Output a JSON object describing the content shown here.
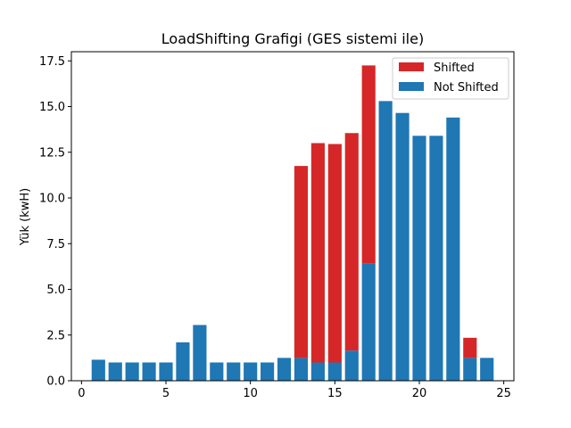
{
  "chart_data": {
    "type": "bar",
    "stacked": true,
    "title": "LoadShifting Grafigi (GES sistemi ile)",
    "xlabel": "",
    "ylabel": "Yük (kwH)",
    "xlim": [
      -0.6,
      25.6
    ],
    "ylim": [
      0,
      18.0
    ],
    "xticks": [
      "0",
      "5",
      "10",
      "15",
      "20",
      "25"
    ],
    "yticks": [
      "0.0",
      "2.5",
      "5.0",
      "7.5",
      "10.0",
      "12.5",
      "15.0",
      "17.5"
    ],
    "x": [
      1,
      2,
      3,
      4,
      5,
      6,
      7,
      8,
      9,
      10,
      11,
      12,
      13,
      14,
      15,
      16,
      17,
      18,
      19,
      20,
      21,
      22,
      23,
      24
    ],
    "series": [
      {
        "name": "Not Shifted",
        "color": "#1f77b4",
        "values": [
          1.15,
          1.0,
          1.0,
          1.0,
          1.0,
          2.1,
          3.05,
          1.0,
          1.0,
          1.0,
          1.0,
          1.25,
          1.25,
          1.0,
          1.0,
          1.65,
          6.4,
          15.3,
          14.65,
          13.4,
          13.4,
          14.4,
          1.25,
          1.25
        ]
      },
      {
        "name": "Shifted",
        "color": "#d62728",
        "values": [
          0,
          0,
          0,
          0,
          0,
          0,
          0,
          0,
          0,
          0,
          0,
          0,
          10.5,
          12.0,
          11.95,
          11.9,
          10.85,
          0,
          0,
          0,
          0,
          0,
          1.1,
          0
        ]
      }
    ],
    "grid": false,
    "legend_position": "top-right"
  }
}
